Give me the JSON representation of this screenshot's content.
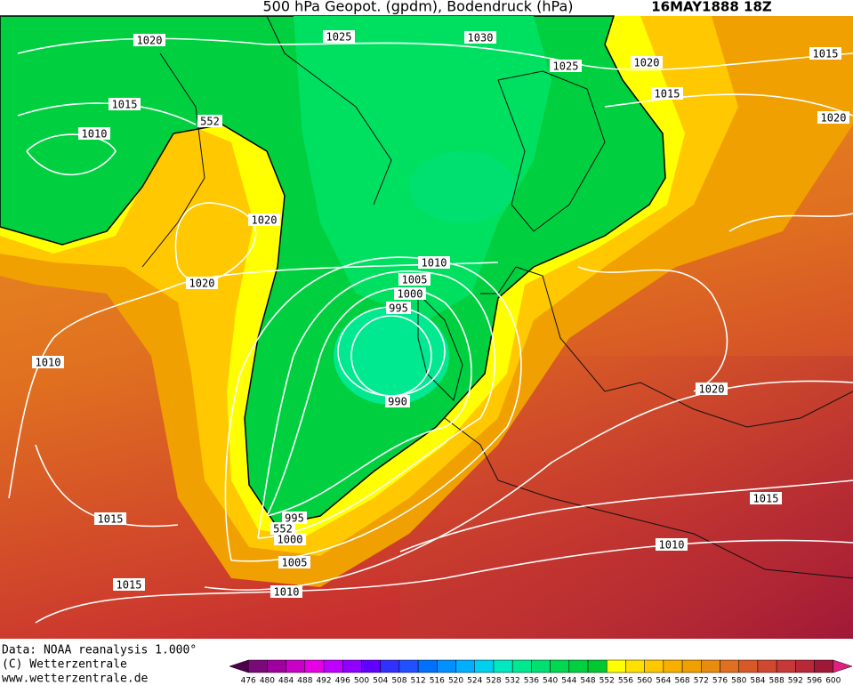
{
  "header": {
    "title": "500 hPa Geopot. (gpdm), Bodendruck (hPa)",
    "date": "16MAY1888 18Z"
  },
  "map": {
    "isobar_labels": [
      "1020",
      "1025",
      "1030",
      "1025",
      "1020",
      "1015",
      "1015",
      "1020",
      "1015",
      "1010",
      "552",
      "1020",
      "1020",
      "1010",
      "1010",
      "1005",
      "1000",
      "995",
      "990",
      "1020",
      "1015",
      "1015",
      "995",
      "552",
      "1000",
      "1005",
      "1010",
      "1010",
      "1015"
    ]
  },
  "footer": {
    "source": "Data: NOAA reanalysis 1.000°",
    "copyright": "(C) Wetterzentrale",
    "url": "www.wetterzentrale.de"
  },
  "colorbar": {
    "labels": [
      476,
      480,
      484,
      488,
      492,
      496,
      500,
      504,
      508,
      512,
      516,
      520,
      524,
      528,
      532,
      536,
      540,
      544,
      548,
      552,
      556,
      560,
      564,
      568,
      572,
      576,
      580,
      584,
      588,
      592,
      596,
      600
    ],
    "colors": [
      "#500050",
      "#7a0a7a",
      "#a000a0",
      "#c800c8",
      "#e600e6",
      "#c000ff",
      "#9000ff",
      "#6000ff",
      "#3030ff",
      "#2050ff",
      "#0070ff",
      "#0090ff",
      "#00b0ff",
      "#00d0f0",
      "#00e8c0",
      "#00e890",
      "#00e070",
      "#00d850",
      "#00d040",
      "#00c830",
      "#ffff00",
      "#ffe000",
      "#ffc800",
      "#f8b000",
      "#f0a000",
      "#e88c10",
      "#e07020",
      "#d85828",
      "#d04830",
      "#c83838",
      "#b82838",
      "#a01838",
      "#e02080"
    ]
  }
}
